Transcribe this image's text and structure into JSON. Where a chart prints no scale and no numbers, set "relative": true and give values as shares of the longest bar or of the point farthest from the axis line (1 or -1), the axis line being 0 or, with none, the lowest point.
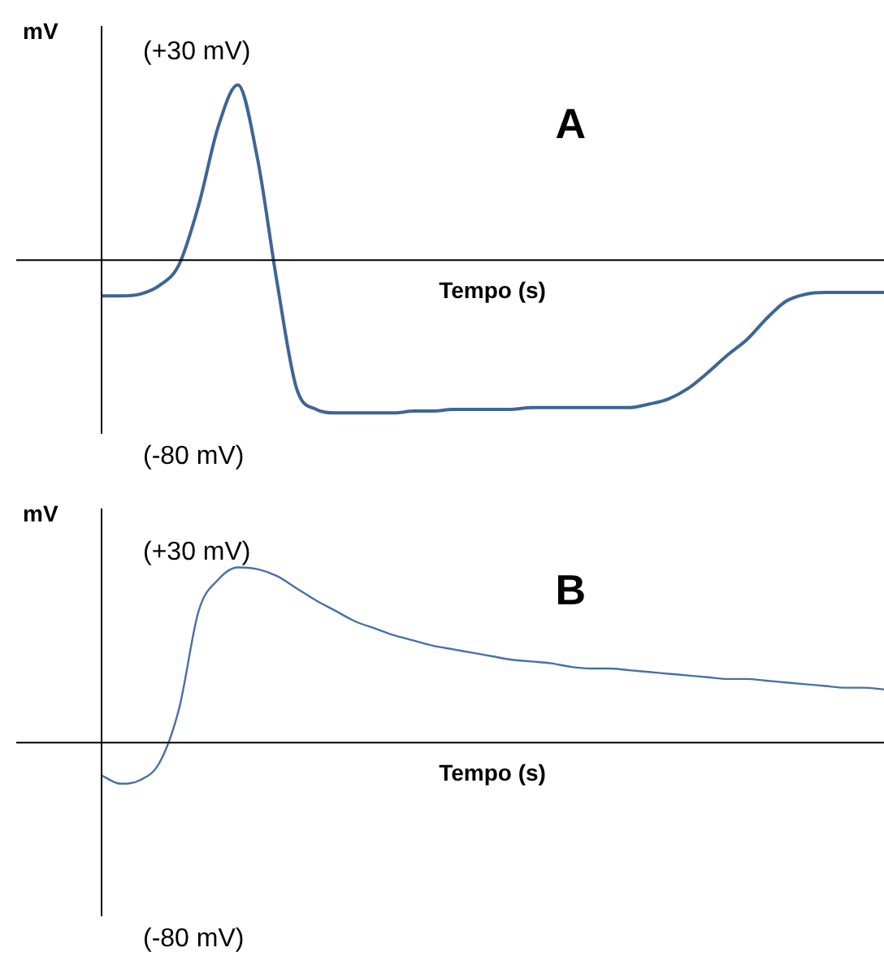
{
  "chart_data": [
    {
      "type": "line",
      "title": "A",
      "xlabel": "Tempo (s)",
      "ylabel": "mV",
      "relative": true,
      "annotations": [
        "(+30 mV)",
        "(-80 mV)"
      ],
      "categories": [
        null,
        null,
        null,
        null,
        null,
        null,
        null,
        null,
        null,
        null,
        null,
        null,
        null,
        null,
        null,
        null,
        null,
        null,
        null,
        null,
        null,
        null,
        null,
        null,
        null,
        null,
        null,
        null,
        null,
        null,
        null,
        null,
        null,
        null,
        null,
        null,
        null,
        null,
        null,
        null,
        null
      ],
      "series": [
        {
          "color": "#3f6594",
          "values": [
            -0.21,
            -0.21,
            -0.2,
            -0.15,
            -0.03,
            0.31,
            0.76,
            1,
            0.58,
            -0.13,
            -0.74,
            -0.86,
            -0.88,
            -0.88,
            -0.88,
            -0.88,
            -0.87,
            -0.87,
            -0.86,
            -0.86,
            -0.86,
            -0.86,
            -0.85,
            -0.85,
            -0.85,
            -0.85,
            -0.85,
            -0.85,
            -0.83,
            -0.8,
            -0.74,
            -0.65,
            -0.55,
            -0.46,
            -0.34,
            -0.24,
            -0.2,
            -0.19,
            -0.19,
            -0.19,
            -0.19
          ]
        }
      ],
      "legend": false,
      "marker": "none",
      "line_style": "solid"
    },
    {
      "type": "line",
      "title": "B",
      "xlabel": "Tempo (s)",
      "ylabel": "mV",
      "relative": true,
      "annotations": [
        "(+30 mV)",
        "(-80 mV)"
      ],
      "categories": [
        null,
        null,
        null,
        null,
        null,
        null,
        null,
        null,
        null,
        null,
        null,
        null,
        null,
        null,
        null,
        null,
        null,
        null,
        null,
        null,
        null,
        null,
        null,
        null,
        null,
        null,
        null,
        null,
        null,
        null,
        null,
        null,
        null,
        null,
        null,
        null,
        null,
        null,
        null,
        null,
        null
      ],
      "series": [
        {
          "color": "#4a70a6",
          "values": [
            -0.19,
            -0.24,
            -0.22,
            -0.12,
            0.19,
            0.75,
            0.93,
            1,
            0.99,
            0.95,
            0.88,
            0.81,
            0.75,
            0.69,
            0.65,
            0.61,
            0.58,
            0.55,
            0.53,
            0.51,
            0.49,
            0.47,
            0.46,
            0.45,
            0.43,
            0.42,
            0.42,
            0.41,
            0.4,
            0.39,
            0.38,
            0.37,
            0.36,
            0.36,
            0.35,
            0.34,
            0.33,
            0.32,
            0.31,
            0.31,
            0.3
          ]
        }
      ],
      "legend": false,
      "marker": "none",
      "line_style": "solid"
    }
  ]
}
